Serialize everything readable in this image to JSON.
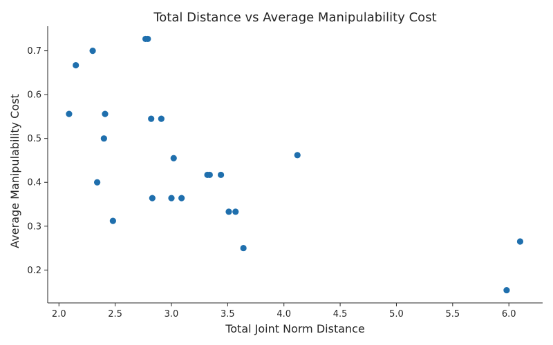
{
  "chart_data": {
    "type": "scatter",
    "title": "Total Distance vs Average Manipulability Cost",
    "xlabel": "Total Joint Norm Distance",
    "ylabel": "Average Manipulability Cost",
    "xlim": [
      1.9,
      6.3
    ],
    "ylim": [
      0.125,
      0.756
    ],
    "xticks": [
      "2.0",
      "2.5",
      "3.0",
      "3.5",
      "4.0",
      "4.5",
      "5.0",
      "5.5",
      "6.0"
    ],
    "yticks": [
      "0.2",
      "0.3",
      "0.4",
      "0.5",
      "0.6",
      "0.7"
    ],
    "grid": false,
    "color": "#1f6fad",
    "points": [
      {
        "x": 2.09,
        "y": 0.556
      },
      {
        "x": 2.15,
        "y": 0.667
      },
      {
        "x": 2.3,
        "y": 0.7
      },
      {
        "x": 2.34,
        "y": 0.4
      },
      {
        "x": 2.4,
        "y": 0.5
      },
      {
        "x": 2.41,
        "y": 0.556
      },
      {
        "x": 2.48,
        "y": 0.312
      },
      {
        "x": 2.77,
        "y": 0.727
      },
      {
        "x": 2.79,
        "y": 0.727
      },
      {
        "x": 2.82,
        "y": 0.545
      },
      {
        "x": 2.83,
        "y": 0.364
      },
      {
        "x": 2.91,
        "y": 0.545
      },
      {
        "x": 3.0,
        "y": 0.364
      },
      {
        "x": 3.02,
        "y": 0.455
      },
      {
        "x": 3.09,
        "y": 0.364
      },
      {
        "x": 3.32,
        "y": 0.417
      },
      {
        "x": 3.34,
        "y": 0.417
      },
      {
        "x": 3.44,
        "y": 0.417
      },
      {
        "x": 3.51,
        "y": 0.333
      },
      {
        "x": 3.57,
        "y": 0.333
      },
      {
        "x": 3.64,
        "y": 0.25
      },
      {
        "x": 4.12,
        "y": 0.462
      },
      {
        "x": 5.98,
        "y": 0.154
      },
      {
        "x": 6.1,
        "y": 0.265
      }
    ]
  }
}
